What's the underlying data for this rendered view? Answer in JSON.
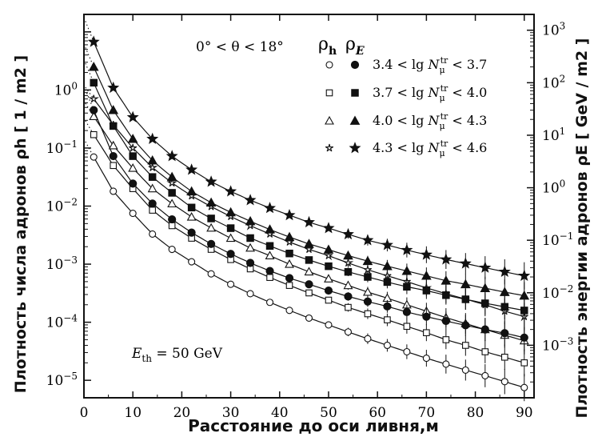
{
  "chart_data": {
    "type": "scatter",
    "xlabel": "Расстояние до оси ливня,м",
    "ylabel_left": "Плотность числа адронов",
    "ylabel_left_symbol": "ρh",
    "ylabel_left_unit": "[ 1 / m2 ]",
    "ylabel_right": "Плотность энергии адронов",
    "ylabel_right_symbol": "ρE",
    "ylabel_right_unit": "[ GeV / m2 ]",
    "xlim": [
      0,
      92
    ],
    "x_ticks": [
      "0",
      "10",
      "20",
      "30",
      "40",
      "50",
      "60",
      "70",
      "80",
      "90"
    ],
    "left_ylim": [
      5e-06,
      20
    ],
    "left_y_scale": "log",
    "left_y_ticks": [
      "10-5",
      "10-4",
      "10-3",
      "10-2",
      "10-1",
      "100"
    ],
    "right_ylim": [
      0.0001,
      2000
    ],
    "right_y_scale": "log",
    "right_y_ticks": [
      "10-3",
      "10-2",
      "10-1",
      "100",
      "101",
      "102",
      "103"
    ],
    "angle_annotation": "0° < θ < 18°",
    "threshold_annotation": "Eth = 50 GeV",
    "legend_headers": [
      "ρh",
      "ρE"
    ],
    "legend_placement": "top-right",
    "legend_entries": [
      {
        "label": "3.4 < lg Nμtr < 3.7",
        "open_marker": "circle",
        "filled_marker": "circle"
      },
      {
        "label": "3.7 < lg Nμtr < 4.0",
        "open_marker": "square",
        "filled_marker": "square"
      },
      {
        "label": "4.0 < lg Nμtr < 4.3",
        "open_marker": "triangle",
        "filled_marker": "triangle"
      },
      {
        "label": "4.3 < lg Nμtr < 4.6",
        "open_marker": "star",
        "filled_marker": "star"
      }
    ],
    "x": [
      2,
      6,
      10,
      14,
      18,
      22,
      26,
      30,
      34,
      38,
      42,
      46,
      50,
      54,
      58,
      62,
      66,
      70,
      74,
      78,
      82,
      86,
      90
    ],
    "series_rho_h": [
      {
        "name": "3.4 < lg Nμtr < 3.7",
        "marker": "circle",
        "values": [
          0.07,
          0.018,
          0.0075,
          0.0033,
          0.0018,
          0.0011,
          0.00068,
          0.00045,
          0.00031,
          0.00022,
          0.00016,
          0.000118,
          9e-05,
          6.8e-05,
          5.2e-05,
          4e-05,
          3.1e-05,
          2.4e-05,
          1.9e-05,
          1.5e-05,
          1.2e-05,
          9.5e-06,
          7.5e-06
        ]
      },
      {
        "name": "3.7 < lg Nμtr < 4.0",
        "marker": "square",
        "values": [
          0.17,
          0.05,
          0.02,
          0.0085,
          0.0046,
          0.0028,
          0.0018,
          0.0012,
          0.00083,
          0.00059,
          0.00043,
          0.00032,
          0.00024,
          0.00018,
          0.00014,
          0.00011,
          8.5e-05,
          6.6e-05,
          5e-05,
          4e-05,
          3.1e-05,
          2.5e-05,
          2e-05
        ]
      },
      {
        "name": "4.0 < lg Nμtr < 4.3",
        "marker": "triangle",
        "values": [
          0.35,
          0.11,
          0.045,
          0.02,
          0.011,
          0.0065,
          0.0042,
          0.0028,
          0.0019,
          0.0014,
          0.001,
          0.00074,
          0.00056,
          0.00043,
          0.00033,
          0.00026,
          0.0002,
          0.000155,
          0.00012,
          9.5e-05,
          7.5e-05,
          6e-05,
          4.8e-05
        ]
      },
      {
        "name": "4.3 < lg Nμtr < 4.6",
        "marker": "star",
        "values": [
          0.7,
          0.25,
          0.1,
          0.046,
          0.025,
          0.015,
          0.0098,
          0.0066,
          0.0046,
          0.0033,
          0.0024,
          0.0018,
          0.0014,
          0.00105,
          0.0008,
          0.00063,
          0.0005,
          0.00039,
          0.00031,
          0.00025,
          0.0002,
          0.000155,
          0.000125
        ]
      }
    ],
    "series_rho_E": [
      {
        "name": "3.4 < lg Nμtr < 3.7",
        "marker": "circle",
        "values": [
          30,
          4,
          1.2,
          0.5,
          0.25,
          0.14,
          0.085,
          0.055,
          0.037,
          0.026,
          0.019,
          0.0145,
          0.011,
          0.0085,
          0.0068,
          0.0055,
          0.0043,
          0.0035,
          0.0029,
          0.0024,
          0.002,
          0.0017,
          0.0014
        ]
      },
      {
        "name": "3.7 < lg Nμtr < 4.0",
        "marker": "square",
        "values": [
          100,
          15,
          4,
          1.6,
          0.8,
          0.42,
          0.26,
          0.17,
          0.11,
          0.078,
          0.056,
          0.042,
          0.032,
          0.025,
          0.02,
          0.016,
          0.013,
          0.011,
          0.009,
          0.0075,
          0.0063,
          0.0054,
          0.0046
        ]
      },
      {
        "name": "4.0 < lg Nμtr < 4.3",
        "marker": "triangle",
        "values": [
          200,
          30,
          8.5,
          3.3,
          1.6,
          0.85,
          0.52,
          0.34,
          0.23,
          0.16,
          0.115,
          0.085,
          0.066,
          0.051,
          0.04,
          0.032,
          0.026,
          0.021,
          0.017,
          0.0145,
          0.0122,
          0.0103,
          0.0088
        ]
      },
      {
        "name": "4.3 < lg Nμtr < 4.6",
        "marker": "star",
        "values": [
          600,
          80,
          22,
          8.5,
          4,
          2.2,
          1.3,
          0.85,
          0.58,
          0.41,
          0.3,
          0.22,
          0.17,
          0.13,
          0.1,
          0.081,
          0.065,
          0.053,
          0.043,
          0.036,
          0.03,
          0.025,
          0.021
        ]
      }
    ]
  }
}
